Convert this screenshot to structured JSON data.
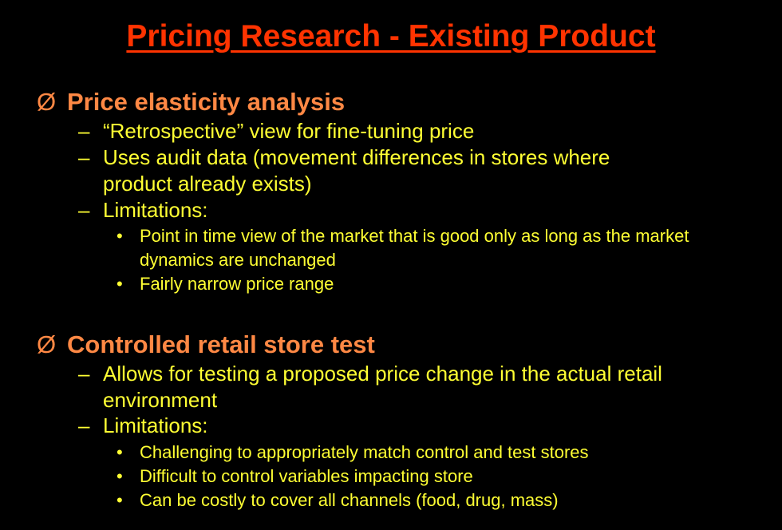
{
  "title": "Pricing Research - Existing Product",
  "bullet_marker": "Ø",
  "dash_marker": "–",
  "dot_marker": "•",
  "sections": [
    {
      "heading": "Price elasticity analysis",
      "items": [
        "“Retrospective” view for fine-tuning price",
        "Uses audit data (movement differences in stores where product already exists)",
        "Limitations:"
      ],
      "subitems": [
        "Point in time view of the market that is good only as long as the market dynamics are unchanged",
        "Fairly narrow price range"
      ]
    },
    {
      "heading": "Controlled retail store test",
      "items": [
        "Allows for testing a proposed price change in the actual retail environment",
        "Limitations:"
      ],
      "subitems": [
        "Challenging to appropriately match control and test stores",
        "Difficult to control variables impacting store",
        "Can be costly to cover all channels (food, drug, mass)"
      ]
    }
  ],
  "colors": {
    "background": "#000000",
    "title": "#ff3300",
    "heading": "#ff8844",
    "body_text": "#ffff33"
  }
}
